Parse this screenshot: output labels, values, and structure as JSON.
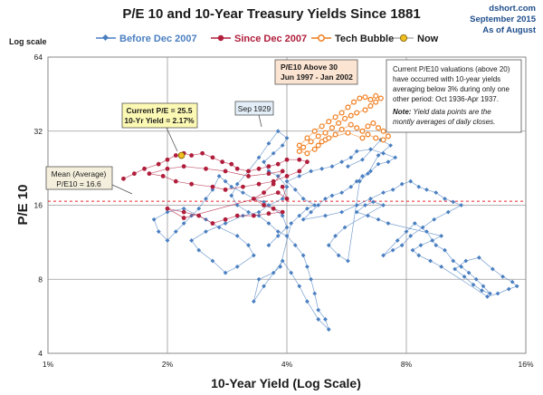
{
  "chart_data": {
    "type": "scatter",
    "title": "P/E 10 and 10-Year Treasury Yields Since 1881",
    "source": "dshort.com",
    "date_line_1": "September 2015",
    "date_line_2": "As of August",
    "scale_note": "Log scale",
    "xlabel": "10-Year Yield (Log Scale)",
    "ylabel": "P/E 10",
    "x_scale": "log",
    "y_scale": "log",
    "xlim": [
      1,
      16
    ],
    "ylim": [
      4,
      64
    ],
    "x_ticks": [
      1,
      2,
      4,
      8,
      16
    ],
    "x_tick_labels": [
      "1%",
      "2%",
      "4%",
      "8%",
      "16%"
    ],
    "y_ticks": [
      4,
      8,
      16,
      32,
      64
    ],
    "y_tick_labels": [
      "4",
      "8",
      "16",
      "32",
      "64"
    ],
    "grid": true,
    "legend_position": "top",
    "mean_line": {
      "value": 16.6,
      "color": "#e8282c"
    },
    "series": [
      {
        "name": "Before Dec 2007",
        "color": "#4a7fc0",
        "marker": "diamond",
        "points": [
          [
            3.6,
            11.0
          ],
          [
            3.8,
            12.0
          ],
          [
            4.0,
            13.0
          ],
          [
            3.9,
            14.5
          ],
          [
            3.7,
            15.5
          ],
          [
            3.5,
            16.5
          ],
          [
            3.3,
            17.0
          ],
          [
            3.1,
            18.0
          ],
          [
            2.9,
            19.0
          ],
          [
            2.8,
            20.0
          ],
          [
            2.7,
            21.0
          ],
          [
            2.6,
            18.5
          ],
          [
            2.5,
            17.0
          ],
          [
            2.4,
            15.5
          ],
          [
            2.3,
            14.5
          ],
          [
            2.2,
            13.5
          ],
          [
            2.1,
            12.5
          ],
          [
            2.0,
            11.5
          ],
          [
            1.9,
            12.5
          ],
          [
            1.85,
            14.0
          ],
          [
            2.0,
            15.0
          ],
          [
            2.2,
            15.5
          ],
          [
            2.5,
            14.0
          ],
          [
            2.7,
            13.0
          ],
          [
            3.0,
            12.0
          ],
          [
            3.2,
            11.0
          ],
          [
            3.3,
            10.0
          ],
          [
            3.0,
            9.0
          ],
          [
            2.8,
            8.5
          ],
          [
            2.6,
            9.5
          ],
          [
            2.4,
            10.5
          ],
          [
            2.3,
            11.5
          ],
          [
            2.5,
            12.5
          ],
          [
            2.8,
            13.5
          ],
          [
            3.1,
            14.5
          ],
          [
            3.4,
            15.0
          ],
          [
            3.6,
            16.0
          ],
          [
            3.9,
            17.0
          ],
          [
            4.0,
            19.0
          ],
          [
            3.8,
            21.0
          ],
          [
            3.6,
            22.0
          ],
          [
            3.5,
            24.0
          ],
          [
            3.7,
            26.0
          ],
          [
            3.9,
            28.0
          ],
          [
            4.0,
            30.0
          ],
          [
            3.8,
            32.0
          ],
          [
            3.6,
            28.5
          ],
          [
            3.4,
            25.0
          ],
          [
            3.2,
            22.0
          ],
          [
            3.0,
            19.5
          ],
          [
            2.9,
            17.5
          ],
          [
            3.0,
            16.0
          ],
          [
            3.2,
            15.0
          ],
          [
            3.4,
            14.5
          ],
          [
            3.6,
            13.5
          ],
          [
            3.8,
            12.5
          ],
          [
            4.0,
            12.0
          ],
          [
            4.2,
            11.0
          ],
          [
            4.4,
            10.0
          ],
          [
            4.5,
            9.0
          ],
          [
            4.6,
            8.0
          ],
          [
            4.7,
            7.0
          ],
          [
            4.8,
            6.0
          ],
          [
            5.0,
            5.5
          ],
          [
            5.1,
            5.0
          ],
          [
            4.8,
            5.5
          ],
          [
            4.5,
            6.5
          ],
          [
            4.3,
            7.5
          ],
          [
            4.1,
            8.5
          ],
          [
            3.9,
            9.5
          ],
          [
            3.5,
            7.5
          ],
          [
            3.3,
            6.5
          ],
          [
            3.4,
            8.0
          ],
          [
            3.7,
            8.5
          ],
          [
            3.85,
            9.0
          ],
          [
            4.1,
            13.5
          ],
          [
            4.3,
            14.5
          ],
          [
            4.5,
            15.5
          ],
          [
            4.7,
            16.0
          ],
          [
            4.4,
            17.0
          ],
          [
            4.2,
            18.5
          ],
          [
            4.0,
            20.0
          ],
          [
            4.3,
            21.0
          ],
          [
            4.6,
            22.0
          ],
          [
            4.9,
            22.5
          ],
          [
            5.2,
            23.0
          ],
          [
            5.5,
            24.0
          ],
          [
            5.8,
            25.0
          ],
          [
            6.0,
            26.5
          ],
          [
            6.5,
            27.0
          ],
          [
            7.0,
            26.0
          ],
          [
            7.5,
            25.0
          ],
          [
            7.2,
            24.0
          ],
          [
            6.8,
            23.5
          ],
          [
            6.5,
            22.0
          ],
          [
            6.2,
            21.0
          ],
          [
            6.0,
            20.0
          ],
          [
            5.8,
            19.0
          ],
          [
            5.5,
            18.0
          ],
          [
            5.2,
            17.5
          ],
          [
            5.0,
            17.0
          ],
          [
            4.8,
            16.0
          ],
          [
            4.6,
            15.0
          ],
          [
            4.4,
            14.0
          ],
          [
            5.0,
            14.5
          ],
          [
            5.5,
            15.0
          ],
          [
            6.0,
            16.0
          ],
          [
            6.5,
            17.0
          ],
          [
            7.0,
            18.0
          ],
          [
            7.4,
            18.5
          ],
          [
            7.8,
            19.5
          ],
          [
            8.2,
            20.0
          ],
          [
            8.6,
            19.0
          ],
          [
            9.0,
            18.5
          ],
          [
            9.5,
            18.0
          ],
          [
            10.0,
            17.0
          ],
          [
            10.5,
            16.5
          ],
          [
            11.0,
            16.0
          ],
          [
            10.2,
            15.0
          ],
          [
            9.4,
            14.0
          ],
          [
            8.8,
            13.0
          ],
          [
            8.2,
            12.0
          ],
          [
            7.8,
            11.0
          ],
          [
            7.4,
            10.5
          ],
          [
            7.0,
            10.0
          ],
          [
            7.6,
            11.5
          ],
          [
            8.0,
            12.5
          ],
          [
            8.4,
            13.5
          ],
          [
            9.0,
            12.5
          ],
          [
            9.5,
            11.0
          ],
          [
            10.0,
            10.5
          ],
          [
            10.5,
            9.5
          ],
          [
            11.0,
            9.0
          ],
          [
            11.5,
            8.5
          ],
          [
            12.0,
            8.0
          ],
          [
            12.5,
            7.5
          ],
          [
            13.0,
            7.0
          ],
          [
            12.4,
            7.2
          ],
          [
            11.8,
            7.6
          ],
          [
            11.2,
            8.2
          ],
          [
            10.6,
            8.8
          ],
          [
            11.3,
            9.5
          ],
          [
            12.2,
            9.8
          ],
          [
            13.2,
            8.8
          ],
          [
            14.0,
            8.2
          ],
          [
            14.8,
            7.8
          ],
          [
            15.2,
            7.5
          ],
          [
            14.5,
            7.3
          ],
          [
            13.6,
            7.0
          ],
          [
            12.8,
            6.8
          ],
          [
            9.8,
            9.0
          ],
          [
            9.2,
            9.5
          ],
          [
            8.6,
            10.0
          ],
          [
            8.3,
            10.5
          ],
          [
            8.7,
            11.0
          ],
          [
            9.3,
            11.5
          ],
          [
            9.8,
            12.0
          ],
          [
            7.2,
            13.5
          ],
          [
            6.8,
            14.0
          ],
          [
            6.4,
            14.5
          ],
          [
            6.0,
            15.0
          ],
          [
            6.3,
            16.0
          ],
          [
            6.6,
            16.5
          ],
          [
            7.0,
            16.0
          ],
          [
            5.6,
            13.0
          ],
          [
            5.3,
            12.0
          ],
          [
            5.1,
            11.0
          ],
          [
            5.4,
            10.0
          ],
          [
            5.7,
            9.5
          ],
          [
            6.1,
            20.0
          ],
          [
            6.4,
            21.5
          ],
          [
            6.8,
            25.5
          ],
          [
            7.3,
            28.0
          ],
          [
            6.9,
            29.5
          ],
          [
            6.2,
            24.5
          ],
          [
            5.7,
            23.0
          ]
        ]
      },
      {
        "name": "Since Dec 2007",
        "color": "#b01e3c",
        "marker": "circle",
        "points": [
          [
            1.55,
            20.5
          ],
          [
            1.65,
            21.5
          ],
          [
            1.75,
            22.5
          ],
          [
            1.9,
            23.5
          ],
          [
            2.0,
            24.5
          ],
          [
            2.1,
            25.5
          ],
          [
            2.2,
            26.0
          ],
          [
            2.3,
            25.5
          ],
          [
            2.45,
            26.0
          ],
          [
            2.6,
            25.0
          ],
          [
            2.75,
            24.0
          ],
          [
            2.9,
            23.5
          ],
          [
            3.0,
            22.5
          ],
          [
            3.2,
            22.0
          ],
          [
            3.4,
            22.5
          ],
          [
            3.6,
            23.0
          ],
          [
            3.8,
            23.5
          ],
          [
            4.0,
            24.5
          ],
          [
            4.3,
            24.5
          ],
          [
            4.5,
            24.0
          ],
          [
            4.3,
            22.0
          ],
          [
            4.0,
            21.0
          ],
          [
            3.7,
            20.0
          ],
          [
            3.4,
            19.5
          ],
          [
            3.1,
            19.0
          ],
          [
            2.8,
            18.5
          ],
          [
            2.6,
            19.0
          ],
          [
            2.3,
            19.5
          ],
          [
            2.1,
            20.0
          ],
          [
            1.95,
            21.0
          ],
          [
            1.8,
            21.5
          ],
          [
            2.0,
            22.5
          ],
          [
            2.2,
            23.0
          ],
          [
            2.5,
            22.5
          ],
          [
            2.8,
            22.0
          ],
          [
            3.2,
            21.0
          ],
          [
            3.6,
            21.5
          ],
          [
            3.9,
            22.0
          ],
          [
            3.7,
            19.5
          ],
          [
            3.5,
            18.0
          ],
          [
            3.3,
            17.0
          ],
          [
            3.5,
            16.0
          ],
          [
            3.7,
            15.5
          ],
          [
            3.9,
            15.0
          ],
          [
            3.6,
            14.8
          ],
          [
            3.3,
            14.5
          ],
          [
            3.0,
            14.5
          ],
          [
            2.8,
            14.0
          ],
          [
            2.6,
            13.5
          ],
          [
            2.4,
            14.5
          ],
          [
            2.2,
            15.0
          ],
          [
            2.0,
            15.5
          ],
          [
            2.2,
            14.2
          ],
          [
            3.8,
            18.0
          ],
          [
            4.0,
            17.0
          ],
          [
            3.9,
            19.0
          ]
        ]
      },
      {
        "name": "Tech Bubble",
        "color": "#f07c1c",
        "marker": "circle",
        "points": [
          [
            4.3,
            28.0
          ],
          [
            4.5,
            30.0
          ],
          [
            4.7,
            32.0
          ],
          [
            4.9,
            33.5
          ],
          [
            5.1,
            35.0
          ],
          [
            5.3,
            36.5
          ],
          [
            5.5,
            38.0
          ],
          [
            5.7,
            40.0
          ],
          [
            5.9,
            42.0
          ],
          [
            6.1,
            43.5
          ],
          [
            6.3,
            44.0
          ],
          [
            6.5,
            43.0
          ],
          [
            6.7,
            44.5
          ],
          [
            6.9,
            43.5
          ],
          [
            6.7,
            42.0
          ],
          [
            6.5,
            40.5
          ],
          [
            6.3,
            39.0
          ],
          [
            6.0,
            38.0
          ],
          [
            5.8,
            37.0
          ],
          [
            5.6,
            36.0
          ],
          [
            5.4,
            34.5
          ],
          [
            5.2,
            33.0
          ],
          [
            5.0,
            31.5
          ],
          [
            4.8,
            30.5
          ],
          [
            4.6,
            29.0
          ],
          [
            4.4,
            27.5
          ],
          [
            4.3,
            26.5
          ],
          [
            4.5,
            26.0
          ],
          [
            4.8,
            28.0
          ],
          [
            5.0,
            29.5
          ],
          [
            5.3,
            31.0
          ],
          [
            5.5,
            32.5
          ],
          [
            5.8,
            34.0
          ],
          [
            6.0,
            33.0
          ],
          [
            6.2,
            32.0
          ],
          [
            6.4,
            33.5
          ],
          [
            6.6,
            34.5
          ],
          [
            6.8,
            33.0
          ],
          [
            7.0,
            32.0
          ],
          [
            7.2,
            30.5
          ],
          [
            7.0,
            29.5
          ],
          [
            6.7,
            30.0
          ],
          [
            6.4,
            31.0
          ],
          [
            6.2,
            30.0
          ],
          [
            5.7,
            31.5
          ],
          [
            5.1,
            30.0
          ],
          [
            4.9,
            29.0
          ],
          [
            4.7,
            27.0
          ]
        ]
      },
      {
        "name": "Now",
        "color": "#f0c020",
        "marker": "circle",
        "points": [
          [
            2.17,
            25.5
          ]
        ]
      }
    ],
    "annotations": {
      "mean": {
        "line1": "Mean (Average)",
        "line2": "P/E10 = 16.6"
      },
      "current": {
        "line1": "Current P/E = 25.5",
        "line2": "10-Yr Yield = 2.17%"
      },
      "sep1929": {
        "label": "Sep 1929"
      },
      "bubble": {
        "line1": "P/E10 Above 30",
        "line2": "Jun 1997 - Jan 2002"
      },
      "note": {
        "line1": "Current P/E10 valuations  (above 20)",
        "line2": "have occurred with 10-year yields",
        "line3": "averaging below 3% during only one",
        "line4": "other period: Oct 1936-Apr 1937.",
        "line5_bold": "Note:",
        "line5_rest": " Yield data points are the",
        "line6": "montly averages of daily closes."
      }
    }
  }
}
